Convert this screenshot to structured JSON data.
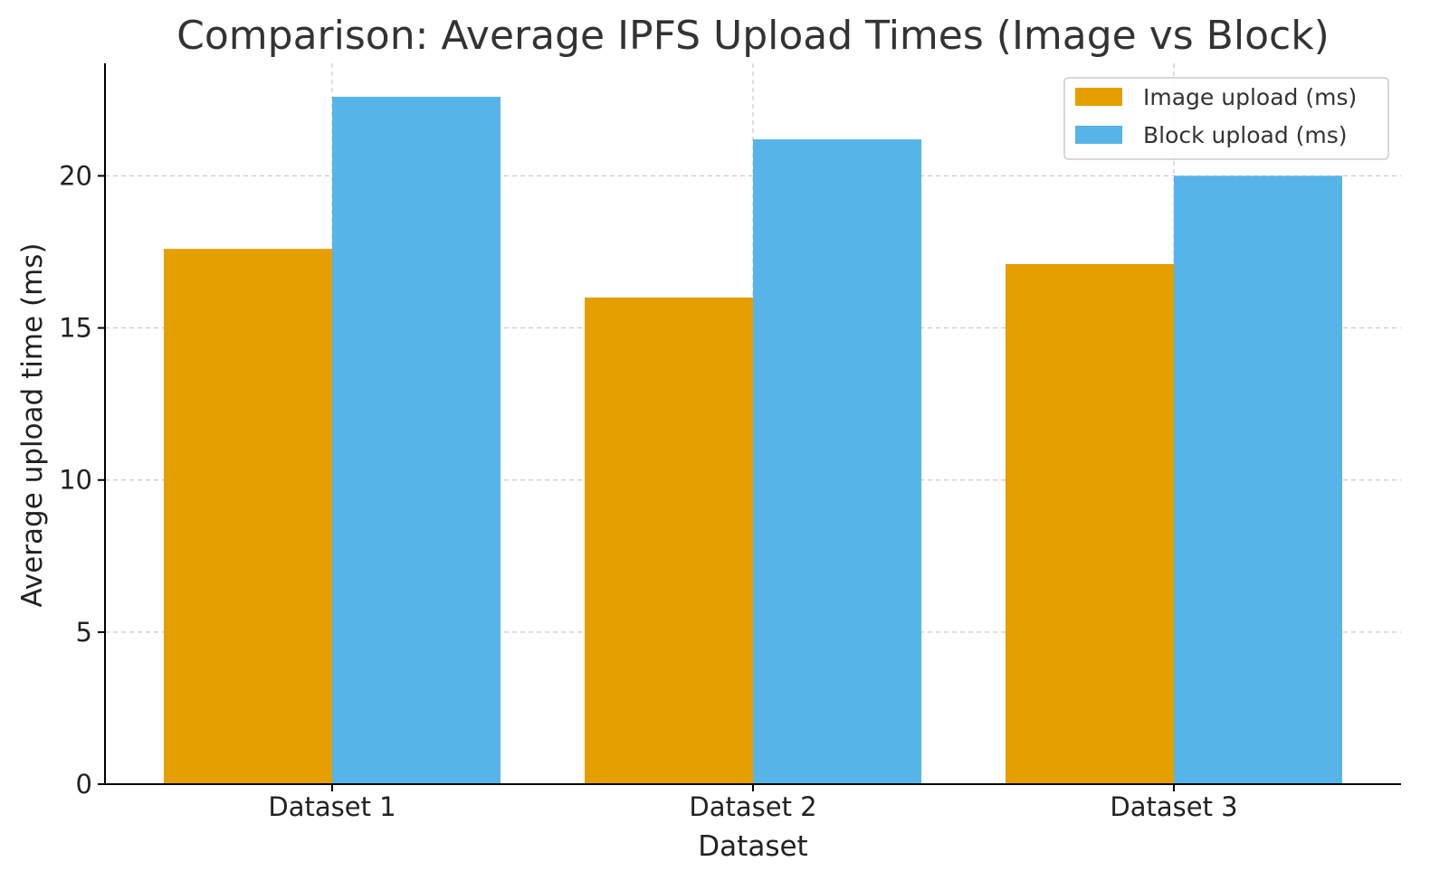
{
  "chart_data": {
    "type": "bar",
    "title": "Comparison: Average IPFS Upload Times (Image vs Block)",
    "xlabel": "Dataset",
    "ylabel": "Average upload time (ms)",
    "categories": [
      "Dataset 1",
      "Dataset 2",
      "Dataset 3"
    ],
    "series": [
      {
        "name": "Image upload (ms)",
        "values": [
          17.6,
          16.0,
          17.1
        ],
        "color": "#E69F00"
      },
      {
        "name": "Block upload (ms)",
        "values": [
          22.6,
          21.2,
          20.0
        ],
        "color": "#56B4E9"
      }
    ],
    "ylim": [
      0,
      23.7
    ],
    "yticks": [
      0,
      5,
      10,
      15,
      20
    ],
    "grid": true,
    "legend_position": "top-right"
  }
}
